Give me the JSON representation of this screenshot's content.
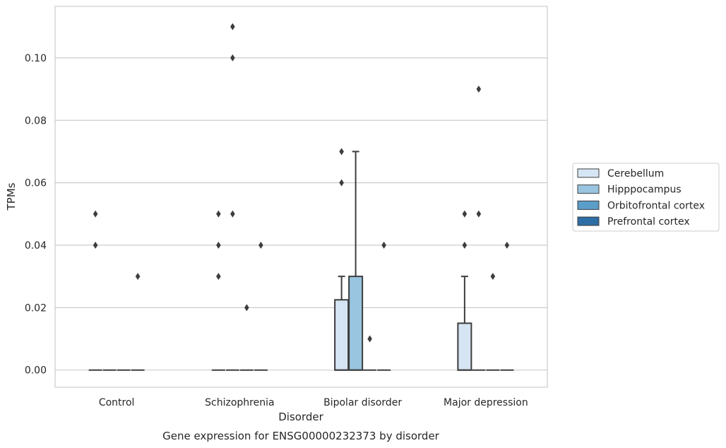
{
  "chart_data": {
    "type": "box",
    "title": "",
    "xlabel": "Disorder",
    "ylabel": "TPMs",
    "caption": "Gene expression for ENSG00000232373 by disorder",
    "ylim": [
      -0.0055,
      0.1165
    ],
    "yticks": [
      0.0,
      0.02,
      0.04,
      0.06,
      0.08,
      0.1
    ],
    "ytick_labels": [
      "0.00",
      "0.02",
      "0.04",
      "0.06",
      "0.08",
      "0.10"
    ],
    "grid": "horizontal",
    "legend_position": "right",
    "categories": [
      "Control",
      "Schizophrenia",
      "Bipolar disorder",
      "Major depression"
    ],
    "series": [
      {
        "name": "Cerebellum",
        "color": "#d6e5f4",
        "boxes": [
          {
            "q1": 0,
            "median": 0,
            "q3": 0,
            "whisker_low": 0,
            "whisker_high": 0,
            "outliers": [
              0.04,
              0.05
            ]
          },
          {
            "q1": 0,
            "median": 0,
            "q3": 0,
            "whisker_low": 0,
            "whisker_high": 0,
            "outliers": [
              0.03,
              0.04,
              0.05
            ]
          },
          {
            "q1": 0,
            "median": 0,
            "q3": 0.0225,
            "whisker_low": 0,
            "whisker_high": 0.03,
            "outliers": [
              0.06,
              0.07
            ]
          },
          {
            "q1": 0,
            "median": 0,
            "q3": 0.015,
            "whisker_low": 0,
            "whisker_high": 0.03,
            "outliers": [
              0.04,
              0.05
            ]
          }
        ]
      },
      {
        "name": "Hipppocampus",
        "color": "#9ac5e0",
        "boxes": [
          {
            "q1": 0,
            "median": 0,
            "q3": 0,
            "whisker_low": 0,
            "whisker_high": 0,
            "outliers": []
          },
          {
            "q1": 0,
            "median": 0,
            "q3": 0,
            "whisker_low": 0,
            "whisker_high": 0,
            "outliers": [
              0.05,
              0.1,
              0.11
            ]
          },
          {
            "q1": 0,
            "median": 0,
            "q3": 0.03,
            "whisker_low": 0,
            "whisker_high": 0.07,
            "outliers": []
          },
          {
            "q1": 0,
            "median": 0,
            "q3": 0,
            "whisker_low": 0,
            "whisker_high": 0,
            "outliers": [
              0.05,
              0.09
            ]
          }
        ]
      },
      {
        "name": "Orbitofrontal cortex",
        "color": "#5b9dc9",
        "boxes": [
          {
            "q1": 0,
            "median": 0,
            "q3": 0,
            "whisker_low": 0,
            "whisker_high": 0,
            "outliers": []
          },
          {
            "q1": 0,
            "median": 0,
            "q3": 0,
            "whisker_low": 0,
            "whisker_high": 0,
            "outliers": [
              0.02
            ]
          },
          {
            "q1": 0,
            "median": 0,
            "q3": 0,
            "whisker_low": 0,
            "whisker_high": 0,
            "outliers": [
              0.01
            ]
          },
          {
            "q1": 0,
            "median": 0,
            "q3": 0,
            "whisker_low": 0,
            "whisker_high": 0,
            "outliers": [
              0.03
            ]
          }
        ]
      },
      {
        "name": "Prefrontal cortex",
        "color": "#2e6ea6",
        "boxes": [
          {
            "q1": 0,
            "median": 0,
            "q3": 0,
            "whisker_low": 0,
            "whisker_high": 0,
            "outliers": [
              0.03
            ]
          },
          {
            "q1": 0,
            "median": 0,
            "q3": 0,
            "whisker_low": 0,
            "whisker_high": 0,
            "outliers": [
              0.04
            ]
          },
          {
            "q1": 0,
            "median": 0,
            "q3": 0,
            "whisker_low": 0,
            "whisker_high": 0,
            "outliers": [
              0.04
            ]
          },
          {
            "q1": 0,
            "median": 0,
            "q3": 0,
            "whisker_low": 0,
            "whisker_high": 0,
            "outliers": [
              0.04
            ]
          }
        ]
      }
    ]
  }
}
